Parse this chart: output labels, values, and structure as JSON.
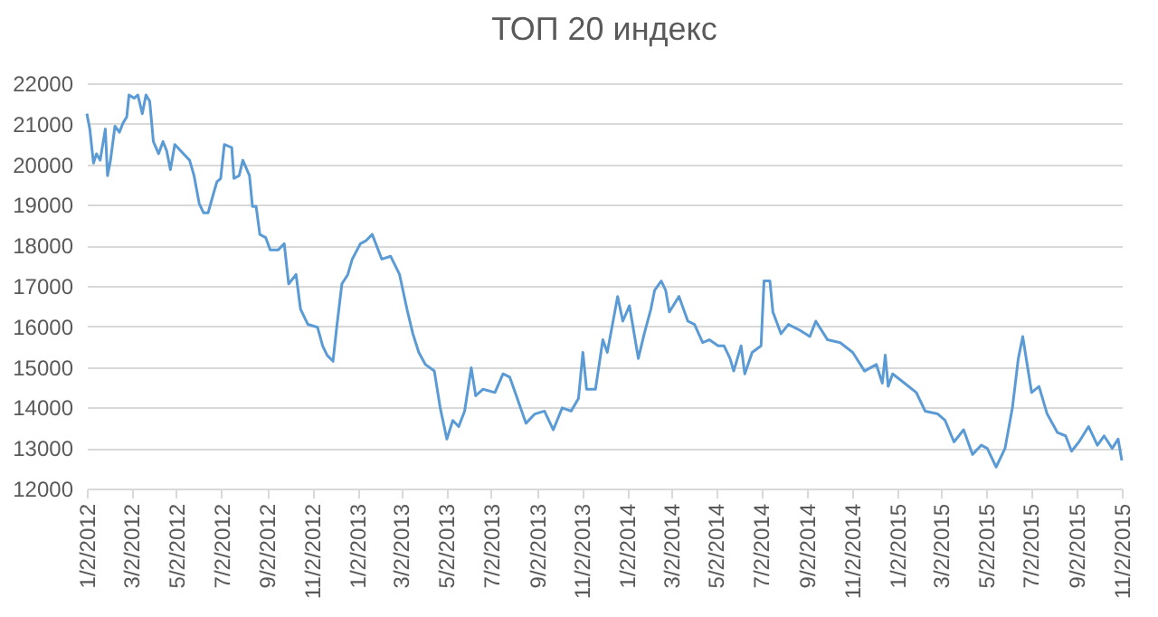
{
  "chart_data": {
    "type": "line",
    "title": "ТОП 20 индекс",
    "x": [
      "2012-01-02",
      "2012-01-06",
      "2012-01-11",
      "2012-01-15",
      "2012-01-20",
      "2012-01-27",
      "2012-01-30",
      "2012-02-03",
      "2012-02-09",
      "2012-02-15",
      "2012-02-20",
      "2012-02-25",
      "2012-02-28",
      "2012-03-06",
      "2012-03-11",
      "2012-03-17",
      "2012-03-22",
      "2012-03-27",
      "2012-04-01",
      "2012-04-08",
      "2012-04-14",
      "2012-04-19",
      "2012-04-24",
      "2012-04-30",
      "2012-05-08",
      "2012-05-20",
      "2012-05-26",
      "2012-06-02",
      "2012-06-08",
      "2012-06-14",
      "2012-06-21",
      "2012-06-26",
      "2012-07-01",
      "2012-07-06",
      "2012-07-16",
      "2012-07-19",
      "2012-07-26",
      "2012-07-31",
      "2012-08-09",
      "2012-08-13",
      "2012-08-18",
      "2012-08-23",
      "2012-08-31",
      "2012-09-06",
      "2012-09-17",
      "2012-09-25",
      "2012-10-01",
      "2012-10-11",
      "2012-10-17",
      "2012-10-27",
      "2012-11-09",
      "2012-11-16",
      "2012-11-22",
      "2012-11-30",
      "2012-12-05",
      "2012-12-12",
      "2012-12-20",
      "2012-12-26",
      "2013-01-06",
      "2013-01-14",
      "2013-01-22",
      "2013-02-04",
      "2013-02-16",
      "2013-02-28",
      "2013-03-10",
      "2013-03-18",
      "2013-03-26",
      "2013-04-04",
      "2013-04-16",
      "2013-04-24",
      "2013-05-03",
      "2013-05-11",
      "2013-05-19",
      "2013-05-27",
      "2013-06-05",
      "2013-06-11",
      "2013-06-21",
      "2013-07-07",
      "2013-07-18",
      "2013-07-27",
      "2013-08-05",
      "2013-08-18",
      "2013-08-30",
      "2013-09-12",
      "2013-09-24",
      "2013-10-06",
      "2013-10-18",
      "2013-10-28",
      "2013-11-03",
      "2013-11-08",
      "2013-11-20",
      "2013-11-30",
      "2013-12-06",
      "2013-12-20",
      "2013-12-27",
      "2014-01-05",
      "2014-01-17",
      "2014-01-25",
      "2014-02-03",
      "2014-02-08",
      "2014-02-17",
      "2014-02-23",
      "2014-02-28",
      "2014-03-13",
      "2014-03-25",
      "2014-04-03",
      "2014-04-14",
      "2014-04-23",
      "2014-05-05",
      "2014-05-13",
      "2014-05-21",
      "2014-05-26",
      "2014-06-05",
      "2014-06-10",
      "2014-06-20",
      "2014-07-02",
      "2014-07-06",
      "2014-07-14",
      "2014-07-18",
      "2014-07-29",
      "2014-08-08",
      "2014-08-24",
      "2014-09-06",
      "2014-09-14",
      "2014-09-30",
      "2014-10-17",
      "2014-11-03",
      "2014-11-19",
      "2014-12-05",
      "2014-12-13",
      "2014-12-17",
      "2014-12-21",
      "2014-12-27",
      "2015-01-12",
      "2015-01-28",
      "2015-02-09",
      "2015-02-26",
      "2015-03-08",
      "2015-03-20",
      "2015-04-02",
      "2015-04-14",
      "2015-04-26",
      "2015-05-04",
      "2015-05-16",
      "2015-05-28",
      "2015-06-07",
      "2015-06-15",
      "2015-06-21",
      "2015-06-27",
      "2015-07-03",
      "2015-07-13",
      "2015-07-24",
      "2015-08-07",
      "2015-08-18",
      "2015-08-26",
      "2015-09-05",
      "2015-09-18",
      "2015-09-30",
      "2015-10-09",
      "2015-10-20",
      "2015-10-28",
      "2015-11-02"
    ],
    "series": [
      {
        "color": "#5b9bd5",
        "values": [
          21250,
          20870,
          20030,
          20260,
          20100,
          20870,
          19720,
          20100,
          20940,
          20790,
          21020,
          21170,
          21710,
          21630,
          21710,
          21250,
          21710,
          21560,
          20560,
          20260,
          20560,
          20330,
          19870,
          20490,
          20330,
          20100,
          19720,
          19030,
          18800,
          18800,
          19260,
          19570,
          19650,
          20490,
          20410,
          19650,
          19720,
          20100,
          19720,
          18960,
          18960,
          18270,
          18190,
          17890,
          17890,
          18040,
          17050,
          17280,
          16430,
          16050,
          15980,
          15520,
          15290,
          15140,
          15980,
          17050,
          17280,
          17660,
          18040,
          18120,
          18270,
          17660,
          17730,
          17280,
          16430,
          15820,
          15360,
          15060,
          14900,
          13990,
          13220,
          13680,
          13530,
          13910,
          14980,
          14290,
          14450,
          14370,
          14830,
          14750,
          14290,
          13610,
          13840,
          13910,
          13450,
          13990,
          13910,
          14220,
          15360,
          14450,
          14450,
          15670,
          15360,
          16740,
          16130,
          16510,
          15210,
          15820,
          16430,
          16890,
          17120,
          16890,
          16360,
          16740,
          16130,
          16050,
          15600,
          15670,
          15520,
          15520,
          15210,
          14900,
          15520,
          14830,
          15360,
          15520,
          17120,
          17120,
          16360,
          15820,
          16050,
          15900,
          15750,
          16130,
          15670,
          15600,
          15360,
          14900,
          15060,
          14600,
          15290,
          14520,
          14830,
          14600,
          14370,
          13910,
          13840,
          13680,
          13150,
          13450,
          12840,
          13070,
          12990,
          12530,
          12990,
          13990,
          15210,
          15750,
          15060,
          14370,
          14520,
          13840,
          13380,
          13300,
          12920,
          13150,
          13530,
          13070,
          13300,
          12990,
          13220,
          12690
        ]
      }
    ],
    "xlim": [
      "2012-01-02",
      "2015-11-02"
    ],
    "xticks": [
      {
        "value": "2012-01-02",
        "label": "1/2/2012"
      },
      {
        "value": "2012-03-02",
        "label": "3/2/2012"
      },
      {
        "value": "2012-05-02",
        "label": "5/2/2012"
      },
      {
        "value": "2012-07-02",
        "label": "7/2/2012"
      },
      {
        "value": "2012-09-02",
        "label": "9/2/2012"
      },
      {
        "value": "2012-11-02",
        "label": "11/2/2012"
      },
      {
        "value": "2013-01-02",
        "label": "1/2/2013"
      },
      {
        "value": "2013-03-02",
        "label": "3/2/2013"
      },
      {
        "value": "2013-05-02",
        "label": "5/2/2013"
      },
      {
        "value": "2013-07-02",
        "label": "7/2/2013"
      },
      {
        "value": "2013-09-02",
        "label": "9/2/2013"
      },
      {
        "value": "2013-11-02",
        "label": "11/2/2013"
      },
      {
        "value": "2014-01-02",
        "label": "1/2/2014"
      },
      {
        "value": "2014-03-02",
        "label": "3/2/2014"
      },
      {
        "value": "2014-05-02",
        "label": "5/2/2014"
      },
      {
        "value": "2014-07-02",
        "label": "7/2/2014"
      },
      {
        "value": "2014-09-02",
        "label": "9/2/2014"
      },
      {
        "value": "2014-11-02",
        "label": "11/2/2014"
      },
      {
        "value": "2015-01-02",
        "label": "1/2/2015"
      },
      {
        "value": "2015-03-02",
        "label": "3/2/2015"
      },
      {
        "value": "2015-05-02",
        "label": "5/2/2015"
      },
      {
        "value": "2015-07-02",
        "label": "7/2/2015"
      },
      {
        "value": "2015-09-02",
        "label": "9/2/2015"
      },
      {
        "value": "2015-11-02",
        "label": "11/2/2015"
      }
    ],
    "ylim": [
      12000,
      22000
    ],
    "yticks": [
      12000,
      13000,
      14000,
      15000,
      16000,
      17000,
      18000,
      19000,
      20000,
      21000,
      22000
    ],
    "grid": "y",
    "marker": "none",
    "line_style": "solid"
  }
}
